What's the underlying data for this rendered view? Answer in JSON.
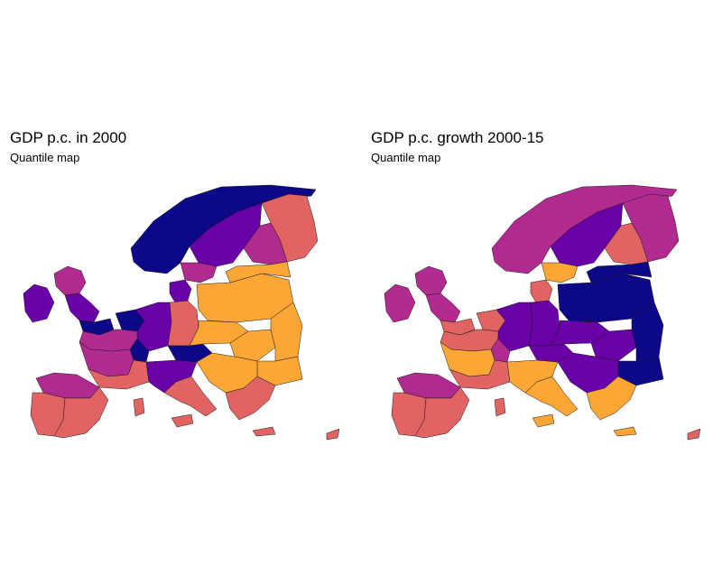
{
  "maps": [
    {
      "title": "GDP p.c. in 2000",
      "subtitle": "Quantile map",
      "regions": {
        "norway": "q1",
        "sweden": "q2",
        "finland_n": "q4",
        "finland_s": "q3",
        "sweden_s": "q3",
        "iceland_ireland": "q2",
        "uk_n": "q3",
        "uk_mid": "q2",
        "uk_s": "q1",
        "denmark": "q2",
        "benelux": "q1",
        "france_n": "q3",
        "france_c": "q3",
        "france_s": "q4",
        "germany_w": "q2",
        "germany_e": "q4",
        "poland": "q5",
        "baltics": "q5",
        "czech_slovakia": "q5",
        "hungary": "q5",
        "romania": "q5",
        "bulgaria": "q5",
        "austria": "q1",
        "switzerland": "q1",
        "italy_n": "q2",
        "italy_s": "q4",
        "iberia_w": "q4",
        "iberia_e": "q4",
        "iberia_n": "q3",
        "greece": "q4",
        "balkans": "q5",
        "cyprus": "q4",
        "crete": "q4",
        "sicily": "q4",
        "sardinia": "q4"
      }
    },
    {
      "title": "GDP p.c. growth 2000-15",
      "subtitle": "Quantile map",
      "regions": {
        "norway": "q3",
        "sweden": "q2",
        "finland_n": "q3",
        "finland_s": "q4",
        "sweden_s": "q5",
        "iceland_ireland": "q3",
        "uk_n": "q3",
        "uk_mid": "q3",
        "uk_s": "q4",
        "denmark": "q4",
        "benelux": "q4",
        "france_n": "q4",
        "france_c": "q5",
        "france_s": "q4",
        "germany_w": "q2",
        "germany_e": "q2",
        "poland": "q1",
        "baltics": "q1",
        "czech_slovakia": "q2",
        "hungary": "q2",
        "romania": "q1",
        "bulgaria": "q1",
        "austria": "q2",
        "switzerland": "q3",
        "italy_n": "q5",
        "italy_s": "q5",
        "iberia_w": "q4",
        "iberia_e": "q4",
        "iberia_n": "q3",
        "greece": "q5",
        "balkans": "q2",
        "cyprus": "q4",
        "crete": "q5",
        "sicily": "q5",
        "sardinia": "q4"
      }
    }
  ],
  "palette": {
    "q1": "#0d0887",
    "q2": "#6a00a8",
    "q3": "#b12a90",
    "q4": "#e16462",
    "q5": "#fca636",
    "q6": "#f0f921"
  }
}
